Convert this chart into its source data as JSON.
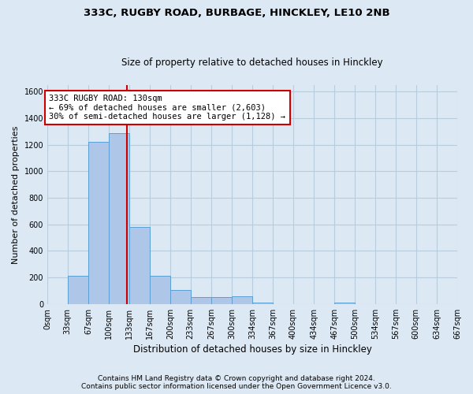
{
  "title1": "333C, RUGBY ROAD, BURBAGE, HINCKLEY, LE10 2NB",
  "title2": "Size of property relative to detached houses in Hinckley",
  "xlabel": "Distribution of detached houses by size in Hinckley",
  "ylabel": "Number of detached properties",
  "footer1": "Contains HM Land Registry data © Crown copyright and database right 2024.",
  "footer2": "Contains public sector information licensed under the Open Government Licence v3.0.",
  "bin_edges": [
    0,
    33,
    67,
    100,
    133,
    167,
    200,
    233,
    267,
    300,
    334,
    367,
    400,
    434,
    467,
    500,
    534,
    567,
    600,
    634,
    667
  ],
  "bar_heights": [
    0,
    210,
    1220,
    1290,
    580,
    210,
    105,
    55,
    55,
    60,
    10,
    0,
    0,
    0,
    10,
    0,
    0,
    0,
    0,
    0
  ],
  "bar_color": "#aec6e8",
  "bar_edge_color": "#5a9fd4",
  "property_size": 130,
  "annotation_line1": "333C RUGBY ROAD: 130sqm",
  "annotation_line2": "← 69% of detached houses are smaller (2,603)",
  "annotation_line3": "30% of semi-detached houses are larger (1,128) →",
  "annotation_box_color": "#ffffff",
  "annotation_box_edge": "#cc0000",
  "vline_color": "#cc0000",
  "grid_color": "#b8ccdc",
  "bg_color": "#dce9f5",
  "ylim": [
    0,
    1650
  ],
  "yticks": [
    0,
    200,
    400,
    600,
    800,
    1000,
    1200,
    1400,
    1600
  ],
  "xlim": [
    0,
    667
  ],
  "title1_fontsize": 9.5,
  "title2_fontsize": 8.5,
  "ylabel_fontsize": 8,
  "xlabel_fontsize": 8.5,
  "tick_fontsize": 7,
  "footer_fontsize": 6.5,
  "annotation_fontsize": 7.5
}
